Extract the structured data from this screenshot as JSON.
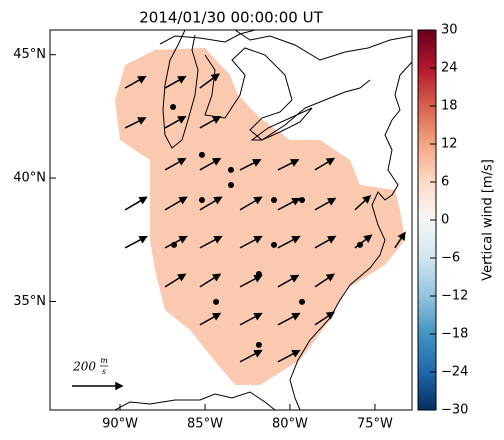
{
  "chart_data": {
    "type": "vector-map",
    "title": "2014/01/30 00:00:00 UT",
    "xlim": [
      -94.12,
      -72.82
    ],
    "ylim": [
      30.6,
      46.0
    ],
    "xticks": [
      {
        "value": -90,
        "label": "90°W"
      },
      {
        "value": -85,
        "label": "85°W"
      },
      {
        "value": -80,
        "label": "80°W"
      },
      {
        "value": -75,
        "label": "75°W"
      }
    ],
    "yticks": [
      {
        "value": 35,
        "label": "35°N"
      },
      {
        "value": 40,
        "label": "40°N"
      },
      {
        "value": 45,
        "label": "45°N"
      }
    ],
    "field_value": 8,
    "vectors": {
      "lon": [
        -89.7,
        -87.35,
        -85.3,
        -89.7,
        -87.35,
        -85.3,
        -87.35,
        -85.3,
        -82.94,
        -80.71,
        -78.53,
        -89.7,
        -87.35,
        -85.3,
        -82.94,
        -80.71,
        -78.53,
        -76.18,
        -89.7,
        -87.35,
        -85.3,
        -82.94,
        -80.71,
        -78.53,
        -76.18,
        -73.83,
        -87.35,
        -85.3,
        -82.94,
        -80.71,
        -78.53,
        -85.3,
        -82.94,
        -80.71,
        -78.53,
        -82.94,
        -80.71
      ],
      "lat": [
        43.65,
        43.65,
        43.65,
        42.03,
        42.03,
        42.03,
        40.33,
        40.33,
        40.33,
        40.33,
        40.33,
        38.71,
        38.71,
        38.71,
        38.71,
        38.71,
        38.71,
        38.71,
        37.17,
        37.17,
        37.17,
        37.17,
        37.17,
        37.17,
        37.17,
        37.17,
        35.59,
        35.59,
        35.59,
        35.59,
        35.59,
        34.05,
        34.05,
        34.05,
        34.05,
        32.55,
        32.55
      ],
      "u": [
        80,
        80,
        75,
        80,
        80,
        80,
        80,
        80,
        80,
        80,
        75,
        85,
        85,
        85,
        85,
        85,
        80,
        60,
        85,
        85,
        85,
        85,
        85,
        80,
        65,
        40,
        80,
        80,
        85,
        80,
        75,
        80,
        85,
        85,
        75,
        85,
        85
      ],
      "v": [
        45,
        45,
        55,
        40,
        45,
        45,
        45,
        45,
        40,
        40,
        45,
        50,
        50,
        50,
        50,
        45,
        45,
        55,
        45,
        45,
        45,
        45,
        45,
        45,
        50,
        60,
        50,
        50,
        45,
        45,
        50,
        45,
        45,
        45,
        50,
        45,
        45
      ]
    },
    "stations": {
      "lon": [
        -86.88,
        -85.18,
        -83.47,
        -83.47,
        -85.18,
        -80.94,
        -79.29,
        -86.82,
        -80.94,
        -75.88,
        -81.83,
        -84.35,
        -79.29,
        -81.83
      ],
      "lat": [
        42.88,
        40.94,
        40.33,
        39.72,
        39.11,
        39.11,
        39.11,
        37.29,
        37.29,
        37.29,
        36.11,
        34.98,
        34.98,
        33.24
      ]
    },
    "key_value": 200,
    "key_label": "200",
    "key_unit_top": "m",
    "key_unit_bottom": "s",
    "colorbar_label": "Vertical wind [m/s]",
    "clim": [
      -30,
      30
    ],
    "cticks": [
      {
        "value": -30,
        "label": "−30"
      },
      {
        "value": -24,
        "label": "−24"
      },
      {
        "value": -18,
        "label": "−18"
      },
      {
        "value": -12,
        "label": "−12"
      },
      {
        "value": -6,
        "label": "−6"
      },
      0,
      6,
      12,
      18,
      24,
      30
    ],
    "colormap_colors": [
      "#053061",
      "#2166ac",
      "#4393c3",
      "#92c5de",
      "#d1e5f0",
      "#f7f7f7",
      "#fddbc7",
      "#f4a582",
      "#d6604d",
      "#b2182b",
      "#67001f"
    ],
    "arrow_color": "#000000",
    "station_color": "#000000"
  }
}
